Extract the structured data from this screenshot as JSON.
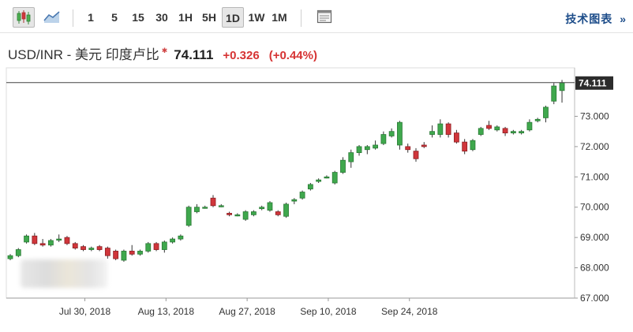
{
  "toolbar": {
    "chart_type_buttons": [
      {
        "icon": "candlestick-icon",
        "active": true
      },
      {
        "icon": "line-chart-icon",
        "active": false
      }
    ],
    "intervals": [
      "1",
      "5",
      "15",
      "30",
      "1H",
      "5H",
      "1D",
      "1W",
      "1M"
    ],
    "active_interval": "1D",
    "settings_icon": "panel-icon",
    "tech_chart_label": "技术图表",
    "tech_chart_arrow": "»"
  },
  "quote": {
    "name": "USD/INR - 美元 印度卢比",
    "star": "✱",
    "price": "74.111",
    "change": "+0.326",
    "change_pct": "(+0.44%)"
  },
  "colors": {
    "up": "#3fa84d",
    "down": "#d0363b",
    "grid": "#dddddd",
    "price_line": "#444444",
    "price_tag_bg": "#2c2c2c"
  },
  "chart_data": {
    "type": "candlestick",
    "instrument": "USD/INR",
    "interval": "1D",
    "current_price": 74.111,
    "current_price_label": "74.111",
    "ylim": [
      67.0,
      74.6
    ],
    "y_ticks": [
      "67.000",
      "68.000",
      "69.000",
      "70.000",
      "71.000",
      "72.000",
      "73.000"
    ],
    "x_ticks": [
      {
        "label": "Jul 30, 2018",
        "index": 9
      },
      {
        "label": "Aug 13, 2018",
        "index": 19
      },
      {
        "label": "Aug 27, 2018",
        "index": 29
      },
      {
        "label": "Sep 10, 2018",
        "index": 39
      },
      {
        "label": "Sep 24, 2018",
        "index": 49
      }
    ],
    "grid": false,
    "candles": [
      {
        "o": 68.3,
        "h": 68.45,
        "l": 68.25,
        "c": 68.4
      },
      {
        "o": 68.4,
        "h": 68.65,
        "l": 68.35,
        "c": 68.6
      },
      {
        "o": 68.85,
        "h": 69.1,
        "l": 68.8,
        "c": 69.05
      },
      {
        "o": 69.05,
        "h": 69.15,
        "l": 68.75,
        "c": 68.8
      },
      {
        "o": 68.8,
        "h": 68.95,
        "l": 68.7,
        "c": 68.75
      },
      {
        "o": 68.75,
        "h": 68.95,
        "l": 68.7,
        "c": 68.9
      },
      {
        "o": 68.95,
        "h": 69.1,
        "l": 68.85,
        "c": 68.95
      },
      {
        "o": 69.0,
        "h": 69.05,
        "l": 68.75,
        "c": 68.8
      },
      {
        "o": 68.8,
        "h": 68.85,
        "l": 68.6,
        "c": 68.65
      },
      {
        "o": 68.7,
        "h": 68.75,
        "l": 68.55,
        "c": 68.6
      },
      {
        "o": 68.6,
        "h": 68.7,
        "l": 68.55,
        "c": 68.65
      },
      {
        "o": 68.7,
        "h": 68.75,
        "l": 68.55,
        "c": 68.6
      },
      {
        "o": 68.65,
        "h": 68.7,
        "l": 68.3,
        "c": 68.4
      },
      {
        "o": 68.55,
        "h": 68.6,
        "l": 68.25,
        "c": 68.3
      },
      {
        "o": 68.25,
        "h": 68.6,
        "l": 68.2,
        "c": 68.55
      },
      {
        "o": 68.55,
        "h": 68.75,
        "l": 68.4,
        "c": 68.45
      },
      {
        "o": 68.45,
        "h": 68.6,
        "l": 68.4,
        "c": 68.55
      },
      {
        "o": 68.55,
        "h": 68.85,
        "l": 68.5,
        "c": 68.8
      },
      {
        "o": 68.8,
        "h": 68.85,
        "l": 68.55,
        "c": 68.6
      },
      {
        "o": 68.6,
        "h": 68.9,
        "l": 68.5,
        "c": 68.85
      },
      {
        "o": 68.85,
        "h": 69.0,
        "l": 68.8,
        "c": 68.95
      },
      {
        "o": 68.95,
        "h": 69.1,
        "l": 68.9,
        "c": 69.05
      },
      {
        "o": 69.4,
        "h": 70.05,
        "l": 69.35,
        "c": 70.0
      },
      {
        "o": 69.85,
        "h": 70.1,
        "l": 69.8,
        "c": 70.0
      },
      {
        "o": 70.0,
        "h": 70.05,
        "l": 69.95,
        "c": 70.0
      },
      {
        "o": 70.3,
        "h": 70.4,
        "l": 70.0,
        "c": 70.05
      },
      {
        "o": 70.05,
        "h": 70.1,
        "l": 70.0,
        "c": 70.05
      },
      {
        "o": 69.8,
        "h": 69.85,
        "l": 69.7,
        "c": 69.75
      },
      {
        "o": 69.75,
        "h": 69.8,
        "l": 69.7,
        "c": 69.75
      },
      {
        "o": 69.6,
        "h": 69.9,
        "l": 69.55,
        "c": 69.85
      },
      {
        "o": 69.75,
        "h": 69.9,
        "l": 69.7,
        "c": 69.85
      },
      {
        "o": 69.95,
        "h": 70.05,
        "l": 69.9,
        "c": 70.0
      },
      {
        "o": 69.9,
        "h": 70.2,
        "l": 69.85,
        "c": 70.15
      },
      {
        "o": 69.85,
        "h": 69.9,
        "l": 69.7,
        "c": 69.75
      },
      {
        "o": 69.7,
        "h": 70.15,
        "l": 69.65,
        "c": 70.1
      },
      {
        "o": 70.2,
        "h": 70.3,
        "l": 70.1,
        "c": 70.25
      },
      {
        "o": 70.3,
        "h": 70.55,
        "l": 70.25,
        "c": 70.5
      },
      {
        "o": 70.6,
        "h": 70.8,
        "l": 70.55,
        "c": 70.75
      },
      {
        "o": 70.85,
        "h": 70.95,
        "l": 70.8,
        "c": 70.9
      },
      {
        "o": 71.0,
        "h": 71.05,
        "l": 70.95,
        "c": 71.0
      }
    ],
    "candles_part2": [
      {
        "o": 70.8,
        "h": 71.2,
        "l": 70.75,
        "c": 71.15
      },
      {
        "o": 71.15,
        "h": 71.65,
        "l": 71.1,
        "c": 71.55
      },
      {
        "o": 71.5,
        "h": 71.9,
        "l": 71.3,
        "c": 71.8
      },
      {
        "o": 71.8,
        "h": 72.05,
        "l": 71.7,
        "c": 72.0
      },
      {
        "o": 71.9,
        "h": 72.05,
        "l": 71.75,
        "c": 72.0
      },
      {
        "o": 71.95,
        "h": 72.2,
        "l": 71.9,
        "c": 72.05
      },
      {
        "o": 72.1,
        "h": 72.5,
        "l": 72.05,
        "c": 72.4
      },
      {
        "o": 72.35,
        "h": 72.6,
        "l": 72.3,
        "c": 72.5
      },
      {
        "o": 72.05,
        "h": 72.85,
        "l": 71.9,
        "c": 72.8
      },
      {
        "o": 72.0,
        "h": 72.1,
        "l": 71.8,
        "c": 71.9
      },
      {
        "o": 71.85,
        "h": 71.95,
        "l": 71.5,
        "c": 71.6
      },
      {
        "o": 72.05,
        "h": 72.15,
        "l": 71.95,
        "c": 72.0
      },
      {
        "o": 72.4,
        "h": 72.7,
        "l": 72.3,
        "c": 72.5
      },
      {
        "o": 72.4,
        "h": 72.9,
        "l": 72.3,
        "c": 72.75
      },
      {
        "o": 72.75,
        "h": 72.8,
        "l": 72.3,
        "c": 72.4
      },
      {
        "o": 72.45,
        "h": 72.55,
        "l": 72.1,
        "c": 72.15
      },
      {
        "o": 72.15,
        "h": 72.25,
        "l": 71.75,
        "c": 71.85
      },
      {
        "o": 71.9,
        "h": 72.25,
        "l": 71.85,
        "c": 72.2
      },
      {
        "o": 72.4,
        "h": 72.65,
        "l": 72.35,
        "c": 72.6
      },
      {
        "o": 72.7,
        "h": 72.85,
        "l": 72.55,
        "c": 72.6
      },
      {
        "o": 72.55,
        "h": 72.7,
        "l": 72.5,
        "c": 72.65
      },
      {
        "o": 72.6,
        "h": 72.65,
        "l": 72.35,
        "c": 72.45
      },
      {
        "o": 72.45,
        "h": 72.55,
        "l": 72.4,
        "c": 72.5
      },
      {
        "o": 72.45,
        "h": 72.55,
        "l": 72.4,
        "c": 72.5
      },
      {
        "o": 72.55,
        "h": 72.9,
        "l": 72.5,
        "c": 72.8
      },
      {
        "o": 72.85,
        "h": 72.95,
        "l": 72.8,
        "c": 72.9
      },
      {
        "o": 72.95,
        "h": 73.35,
        "l": 72.8,
        "c": 73.3
      },
      {
        "o": 73.5,
        "h": 74.1,
        "l": 73.4,
        "c": 74.0
      },
      {
        "o": 73.85,
        "h": 74.2,
        "l": 73.45,
        "c": 74.11
      }
    ]
  }
}
